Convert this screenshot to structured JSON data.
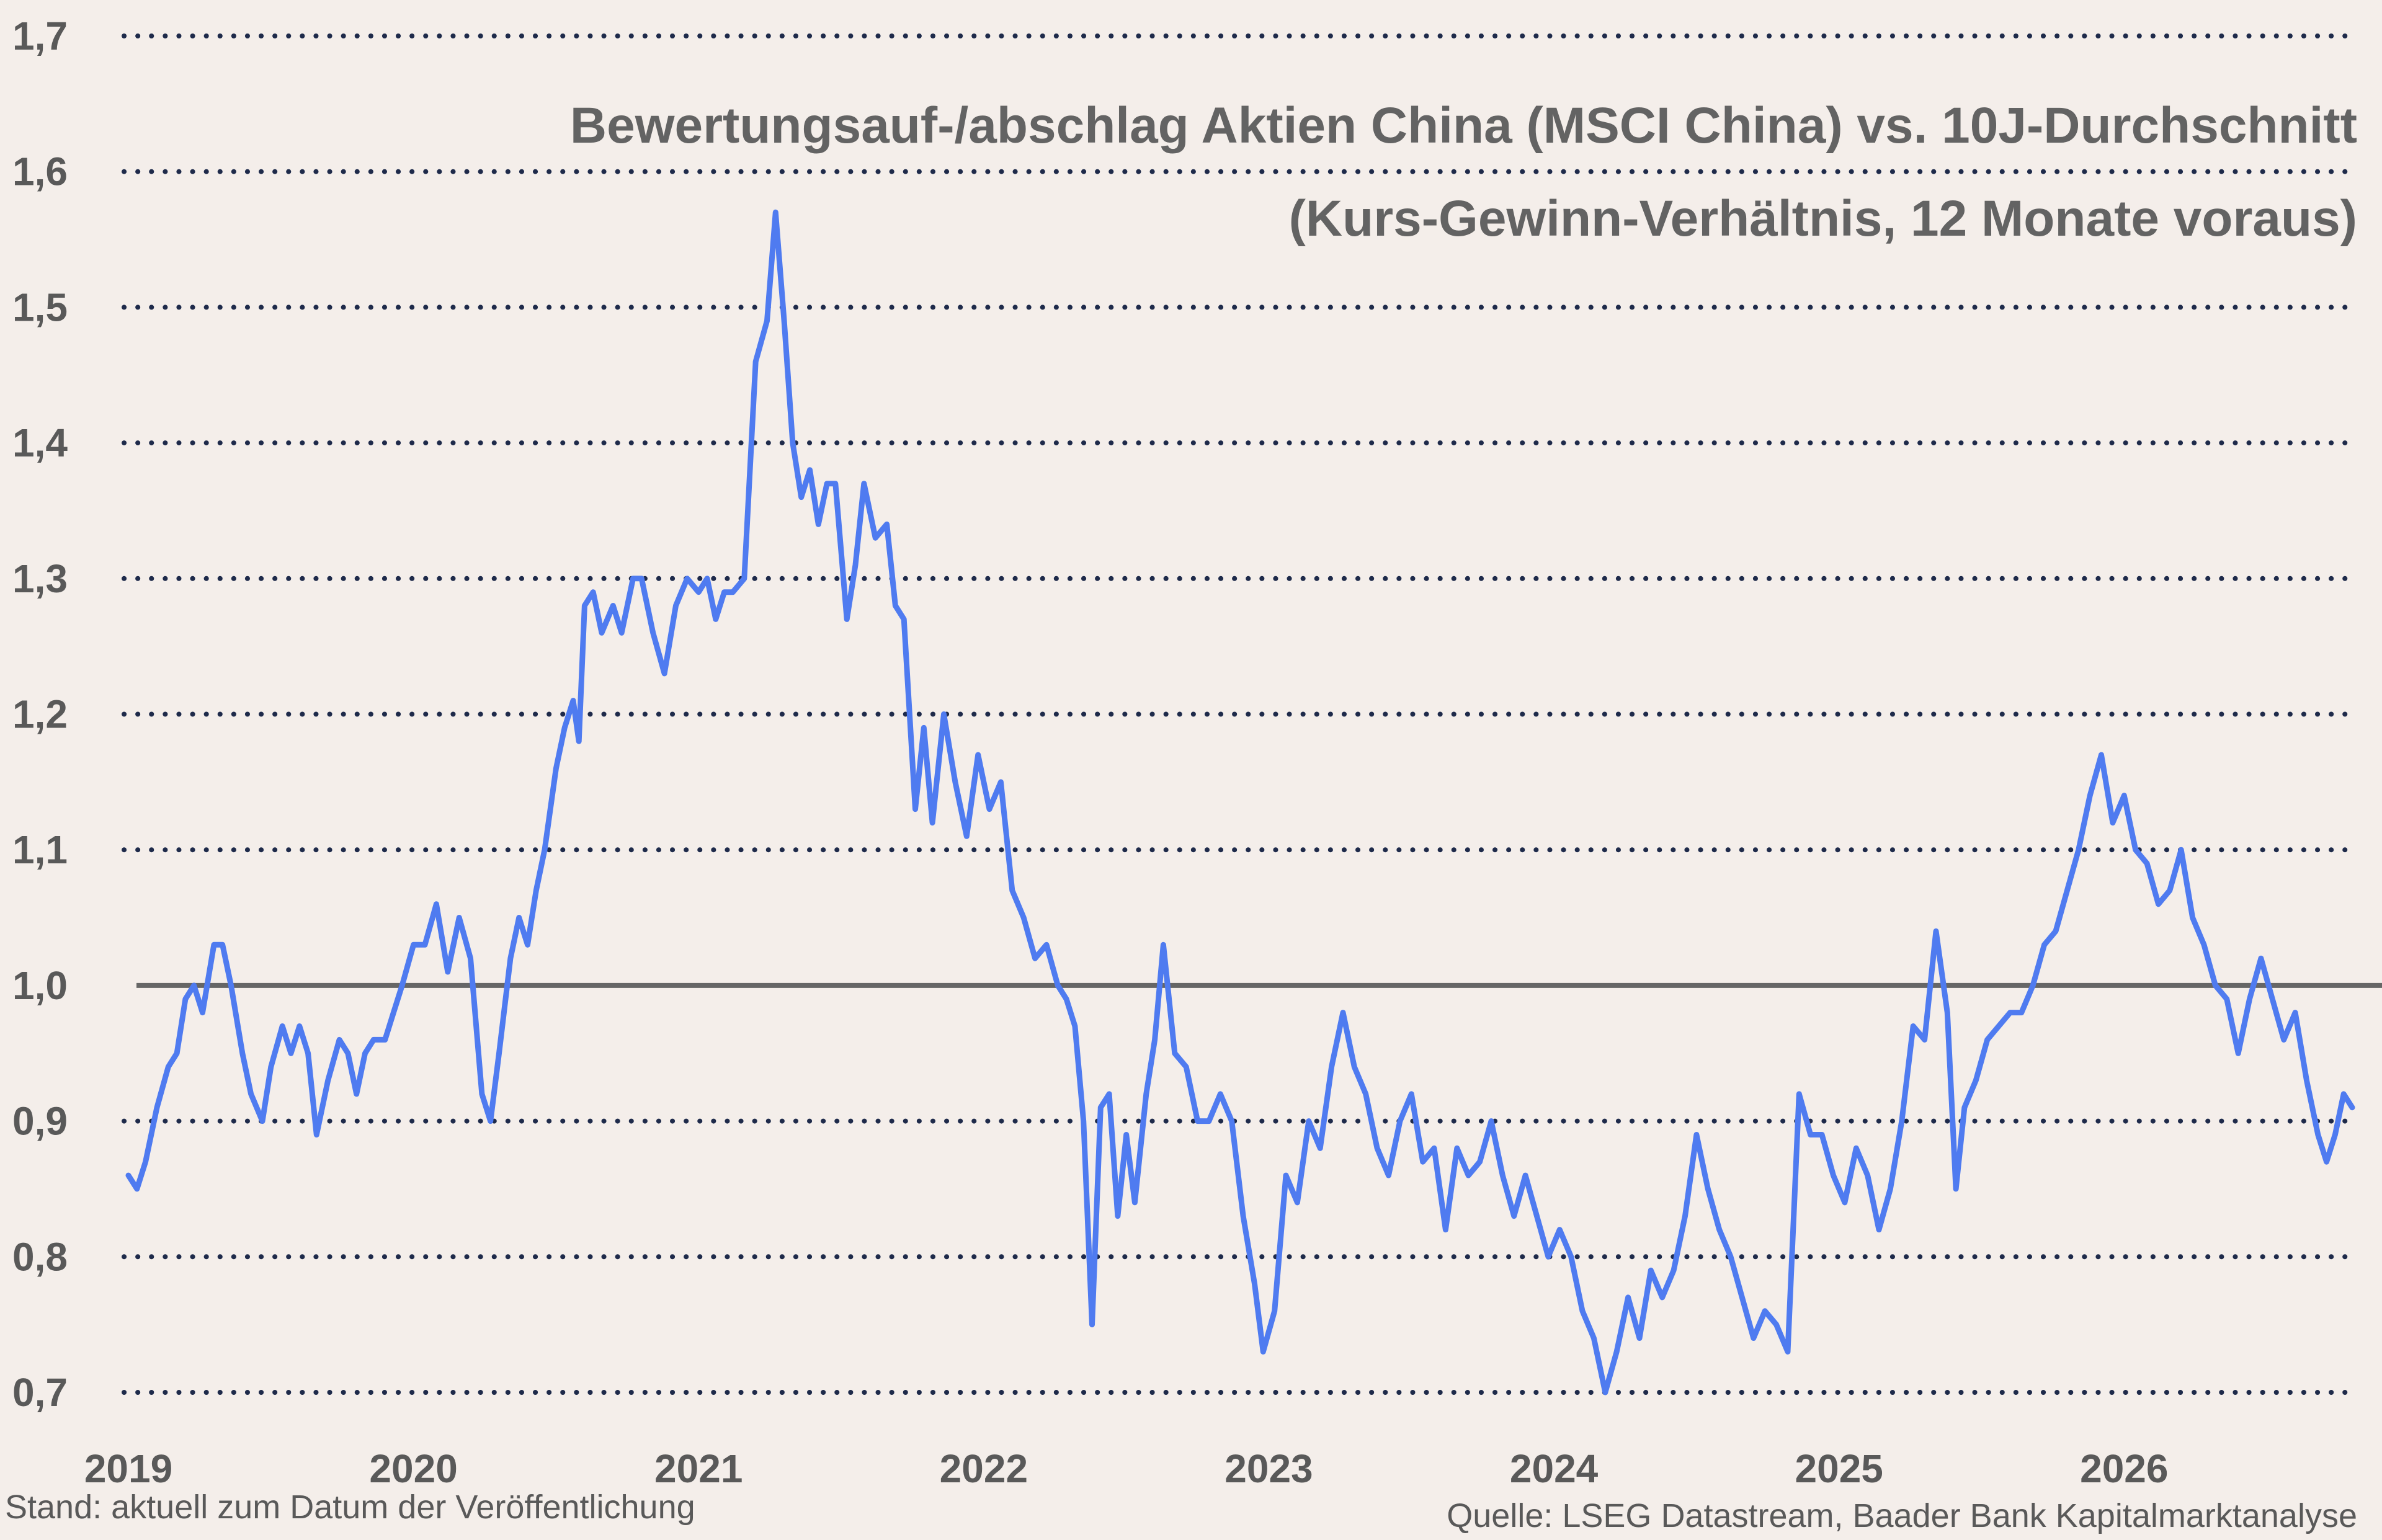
{
  "chart_data": {
    "type": "line",
    "title": "Bewertungsauf-/abschlag Aktien China (MSCI China) vs. 10J-Durchschnitt",
    "subtitle": "(Kurs-Gewinn-Verhältnis, 12 Monate voraus)",
    "xlabel": "",
    "ylabel": "",
    "y_ticks": [
      "0,7",
      "0,8",
      "0,9",
      "1,0",
      "1,1",
      "1,2",
      "1,3",
      "1,4",
      "1,5",
      "1,6",
      "1,7"
    ],
    "y_tick_values": [
      0.7,
      0.8,
      0.9,
      1.0,
      1.1,
      1.2,
      1.3,
      1.4,
      1.5,
      1.6,
      1.7
    ],
    "x_ticks": [
      "2019",
      "2020",
      "2021",
      "2022",
      "2023",
      "2024",
      "2025",
      "2026"
    ],
    "ylim": [
      0.7,
      1.7
    ],
    "xlim": [
      2019.0,
      2026.8
    ],
    "grid": "horizontal dotted",
    "reference_line": 1.0,
    "series": [
      {
        "color": "#4f7bf0",
        "points": [
          [
            2019.0,
            0.86
          ],
          [
            2019.03,
            0.85
          ],
          [
            2019.06,
            0.87
          ],
          [
            2019.1,
            0.91
          ],
          [
            2019.14,
            0.94
          ],
          [
            2019.17,
            0.95
          ],
          [
            2019.2,
            0.99
          ],
          [
            2019.23,
            1.0
          ],
          [
            2019.26,
            0.98
          ],
          [
            2019.3,
            1.03
          ],
          [
            2019.33,
            1.03
          ],
          [
            2019.36,
            1.0
          ],
          [
            2019.4,
            0.95
          ],
          [
            2019.43,
            0.92
          ],
          [
            2019.47,
            0.9
          ],
          [
            2019.5,
            0.94
          ],
          [
            2019.54,
            0.97
          ],
          [
            2019.57,
            0.95
          ],
          [
            2019.6,
            0.97
          ],
          [
            2019.63,
            0.95
          ],
          [
            2019.66,
            0.89
          ],
          [
            2019.7,
            0.93
          ],
          [
            2019.74,
            0.96
          ],
          [
            2019.77,
            0.95
          ],
          [
            2019.8,
            0.92
          ],
          [
            2019.83,
            0.95
          ],
          [
            2019.86,
            0.96
          ],
          [
            2019.9,
            0.96
          ],
          [
            2019.93,
            0.98
          ],
          [
            2019.96,
            1.0
          ],
          [
            2020.0,
            1.03
          ],
          [
            2020.04,
            1.03
          ],
          [
            2020.08,
            1.06
          ],
          [
            2020.12,
            1.01
          ],
          [
            2020.16,
            1.05
          ],
          [
            2020.2,
            1.02
          ],
          [
            2020.24,
            0.92
          ],
          [
            2020.27,
            0.9
          ],
          [
            2020.3,
            0.95
          ],
          [
            2020.34,
            1.02
          ],
          [
            2020.37,
            1.05
          ],
          [
            2020.4,
            1.03
          ],
          [
            2020.43,
            1.07
          ],
          [
            2020.46,
            1.1
          ],
          [
            2020.5,
            1.16
          ],
          [
            2020.53,
            1.19
          ],
          [
            2020.56,
            1.21
          ],
          [
            2020.58,
            1.18
          ],
          [
            2020.6,
            1.28
          ],
          [
            2020.63,
            1.29
          ],
          [
            2020.66,
            1.26
          ],
          [
            2020.7,
            1.28
          ],
          [
            2020.73,
            1.26
          ],
          [
            2020.77,
            1.3
          ],
          [
            2020.8,
            1.3
          ],
          [
            2020.84,
            1.26
          ],
          [
            2020.88,
            1.23
          ],
          [
            2020.92,
            1.28
          ],
          [
            2020.96,
            1.3
          ],
          [
            2021.0,
            1.29
          ],
          [
            2021.03,
            1.3
          ],
          [
            2021.06,
            1.27
          ],
          [
            2021.09,
            1.29
          ],
          [
            2021.12,
            1.29
          ],
          [
            2021.16,
            1.3
          ],
          [
            2021.2,
            1.46
          ],
          [
            2021.24,
            1.49
          ],
          [
            2021.27,
            1.57
          ],
          [
            2021.3,
            1.49
          ],
          [
            2021.33,
            1.4
          ],
          [
            2021.36,
            1.36
          ],
          [
            2021.39,
            1.38
          ],
          [
            2021.42,
            1.34
          ],
          [
            2021.45,
            1.37
          ],
          [
            2021.48,
            1.37
          ],
          [
            2021.52,
            1.27
          ],
          [
            2021.55,
            1.31
          ],
          [
            2021.58,
            1.37
          ],
          [
            2021.62,
            1.33
          ],
          [
            2021.66,
            1.34
          ],
          [
            2021.69,
            1.28
          ],
          [
            2021.72,
            1.27
          ],
          [
            2021.76,
            1.13
          ],
          [
            2021.79,
            1.19
          ],
          [
            2021.82,
            1.12
          ],
          [
            2021.86,
            1.2
          ],
          [
            2021.9,
            1.15
          ],
          [
            2021.94,
            1.11
          ],
          [
            2021.98,
            1.17
          ],
          [
            2022.02,
            1.13
          ],
          [
            2022.06,
            1.15
          ],
          [
            2022.1,
            1.07
          ],
          [
            2022.14,
            1.05
          ],
          [
            2022.18,
            1.02
          ],
          [
            2022.22,
            1.03
          ],
          [
            2022.26,
            1.0
          ],
          [
            2022.29,
            0.99
          ],
          [
            2022.32,
            0.97
          ],
          [
            2022.35,
            0.9
          ],
          [
            2022.38,
            0.75
          ],
          [
            2022.41,
            0.91
          ],
          [
            2022.44,
            0.92
          ],
          [
            2022.47,
            0.83
          ],
          [
            2022.5,
            0.89
          ],
          [
            2022.53,
            0.84
          ],
          [
            2022.57,
            0.92
          ],
          [
            2022.6,
            0.96
          ],
          [
            2022.63,
            1.03
          ],
          [
            2022.67,
            0.95
          ],
          [
            2022.71,
            0.94
          ],
          [
            2022.75,
            0.9
          ],
          [
            2022.79,
            0.9
          ],
          [
            2022.83,
            0.92
          ],
          [
            2022.87,
            0.9
          ],
          [
            2022.91,
            0.83
          ],
          [
            2022.95,
            0.78
          ],
          [
            2022.98,
            0.73
          ],
          [
            2023.02,
            0.76
          ],
          [
            2023.06,
            0.86
          ],
          [
            2023.1,
            0.84
          ],
          [
            2023.14,
            0.9
          ],
          [
            2023.18,
            0.88
          ],
          [
            2023.22,
            0.94
          ],
          [
            2023.26,
            0.98
          ],
          [
            2023.3,
            0.94
          ],
          [
            2023.34,
            0.92
          ],
          [
            2023.38,
            0.88
          ],
          [
            2023.42,
            0.86
          ],
          [
            2023.46,
            0.9
          ],
          [
            2023.5,
            0.92
          ],
          [
            2023.54,
            0.87
          ],
          [
            2023.58,
            0.88
          ],
          [
            2023.62,
            0.82
          ],
          [
            2023.66,
            0.88
          ],
          [
            2023.7,
            0.86
          ],
          [
            2023.74,
            0.87
          ],
          [
            2023.78,
            0.9
          ],
          [
            2023.82,
            0.86
          ],
          [
            2023.86,
            0.83
          ],
          [
            2023.9,
            0.86
          ],
          [
            2023.94,
            0.83
          ],
          [
            2023.98,
            0.8
          ],
          [
            2024.02,
            0.82
          ],
          [
            2024.06,
            0.8
          ],
          [
            2024.1,
            0.76
          ],
          [
            2024.14,
            0.74
          ],
          [
            2024.18,
            0.7
          ],
          [
            2024.22,
            0.73
          ],
          [
            2024.26,
            0.77
          ],
          [
            2024.3,
            0.74
          ],
          [
            2024.34,
            0.79
          ],
          [
            2024.38,
            0.77
          ],
          [
            2024.42,
            0.79
          ],
          [
            2024.46,
            0.83
          ],
          [
            2024.5,
            0.89
          ],
          [
            2024.54,
            0.85
          ],
          [
            2024.58,
            0.82
          ],
          [
            2024.62,
            0.8
          ],
          [
            2024.66,
            0.77
          ],
          [
            2024.7,
            0.74
          ],
          [
            2024.74,
            0.76
          ],
          [
            2024.78,
            0.75
          ],
          [
            2024.82,
            0.73
          ],
          [
            2024.86,
            0.92
          ],
          [
            2024.9,
            0.89
          ],
          [
            2024.94,
            0.89
          ],
          [
            2024.98,
            0.86
          ],
          [
            2025.02,
            0.84
          ],
          [
            2025.06,
            0.88
          ],
          [
            2025.1,
            0.86
          ],
          [
            2025.14,
            0.82
          ],
          [
            2025.18,
            0.85
          ],
          [
            2025.22,
            0.9
          ],
          [
            2025.26,
            0.97
          ],
          [
            2025.3,
            0.96
          ],
          [
            2025.34,
            1.04
          ],
          [
            2025.38,
            0.98
          ],
          [
            2025.41,
            0.85
          ],
          [
            2025.44,
            0.91
          ],
          [
            2025.48,
            0.93
          ],
          [
            2025.52,
            0.96
          ],
          [
            2025.56,
            0.97
          ],
          [
            2025.6,
            0.98
          ],
          [
            2025.64,
            0.98
          ],
          [
            2025.68,
            1.0
          ],
          [
            2025.72,
            1.03
          ],
          [
            2025.76,
            1.04
          ],
          [
            2025.8,
            1.07
          ],
          [
            2025.84,
            1.1
          ],
          [
            2025.88,
            1.14
          ],
          [
            2025.92,
            1.17
          ],
          [
            2025.96,
            1.12
          ],
          [
            2026.0,
            1.14
          ],
          [
            2026.04,
            1.1
          ],
          [
            2026.08,
            1.09
          ],
          [
            2026.12,
            1.06
          ],
          [
            2026.16,
            1.07
          ],
          [
            2026.2,
            1.1
          ],
          [
            2026.24,
            1.05
          ],
          [
            2026.28,
            1.03
          ],
          [
            2026.32,
            1.0
          ],
          [
            2026.36,
            0.99
          ],
          [
            2026.4,
            0.95
          ],
          [
            2026.44,
            0.99
          ],
          [
            2026.48,
            1.02
          ],
          [
            2026.52,
            0.99
          ],
          [
            2026.56,
            0.96
          ],
          [
            2026.6,
            0.98
          ],
          [
            2026.64,
            0.93
          ],
          [
            2026.68,
            0.89
          ],
          [
            2026.71,
            0.87
          ],
          [
            2026.74,
            0.89
          ],
          [
            2026.77,
            0.92
          ],
          [
            2026.8,
            0.91
          ]
        ]
      }
    ]
  },
  "footer": {
    "left": "Stand: aktuell zum Datum der Veröffentlichung",
    "right": "Quelle: LSEG Datastream, Baader Bank Kapitalmarktanalyse"
  }
}
